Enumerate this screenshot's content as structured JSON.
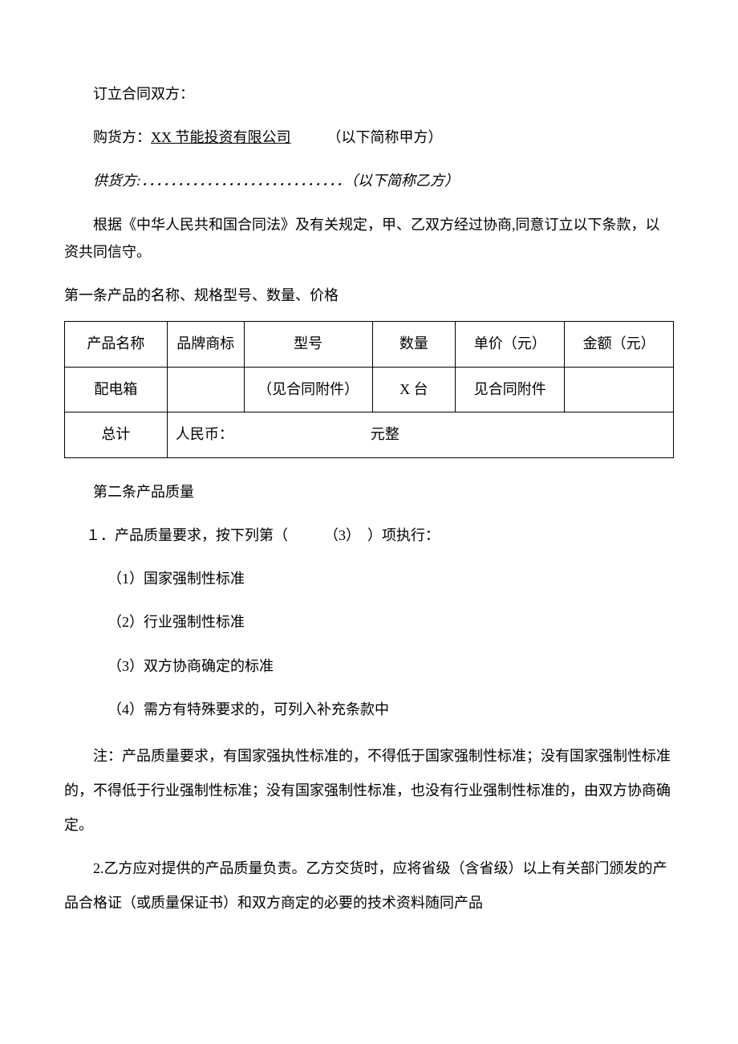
{
  "header": {
    "parties_label": "订立合同双方：",
    "buyer_label": "购货方：",
    "buyer_name": "XX 节能投资有限公司",
    "buyer_alias": "（以下简称甲方）",
    "supplier_label": "供货方:",
    "supplier_dots": "．．．．．．．．．．．．．．．．．．．．．．",
    "supplier_alias": "．．．．．．（以下简称乙方）",
    "preamble": "根据《中华人民共和国合同法》及有关规定，甲、乙双方经过协商,同意订立以下条款，以资共同信守。"
  },
  "article1": {
    "title": "第一条产品的名称、规格型号、数量、价格",
    "headers": {
      "c1": "产品名称",
      "c2": "品牌商标",
      "c3": "型号",
      "c4": "数量",
      "c5": "单价（元）",
      "c6": "金额（元）"
    },
    "row1": {
      "c1": "配电箱",
      "c2": "",
      "c3": "（见合同附件）",
      "c4": "X 台",
      "c5": "见合同附件",
      "c6": ""
    },
    "total": {
      "label": "总计",
      "value": "人民币：　　　　　　　　　　元整"
    }
  },
  "article2": {
    "title": "第二条产品质量",
    "item1": "１．产品质量要求，按下列第（　　　（3）　）项执行：",
    "opt1": "（1）国家强制性标准",
    "opt2": "（2）行业强制性标准",
    "opt3": "（3）双方协商确定的标准",
    "opt4": "（4）需方有特殊要求的，可列入补充条款中",
    "note": "注：产品质量要求，有国家强执性标准的，不得低于国家强制性标准；没有国家强制性标准的，不得低于行业强制性标准；没有国家强制性标准，也没有行业强制性标准的，由双方协商确定。",
    "item2": "2.乙方应对提供的产品质量负责。乙方交货时，应将省级（含省级）以上有关部门颁发的产品合格证（或质量保证书）和双方商定的必要的技术资料随同产品"
  }
}
